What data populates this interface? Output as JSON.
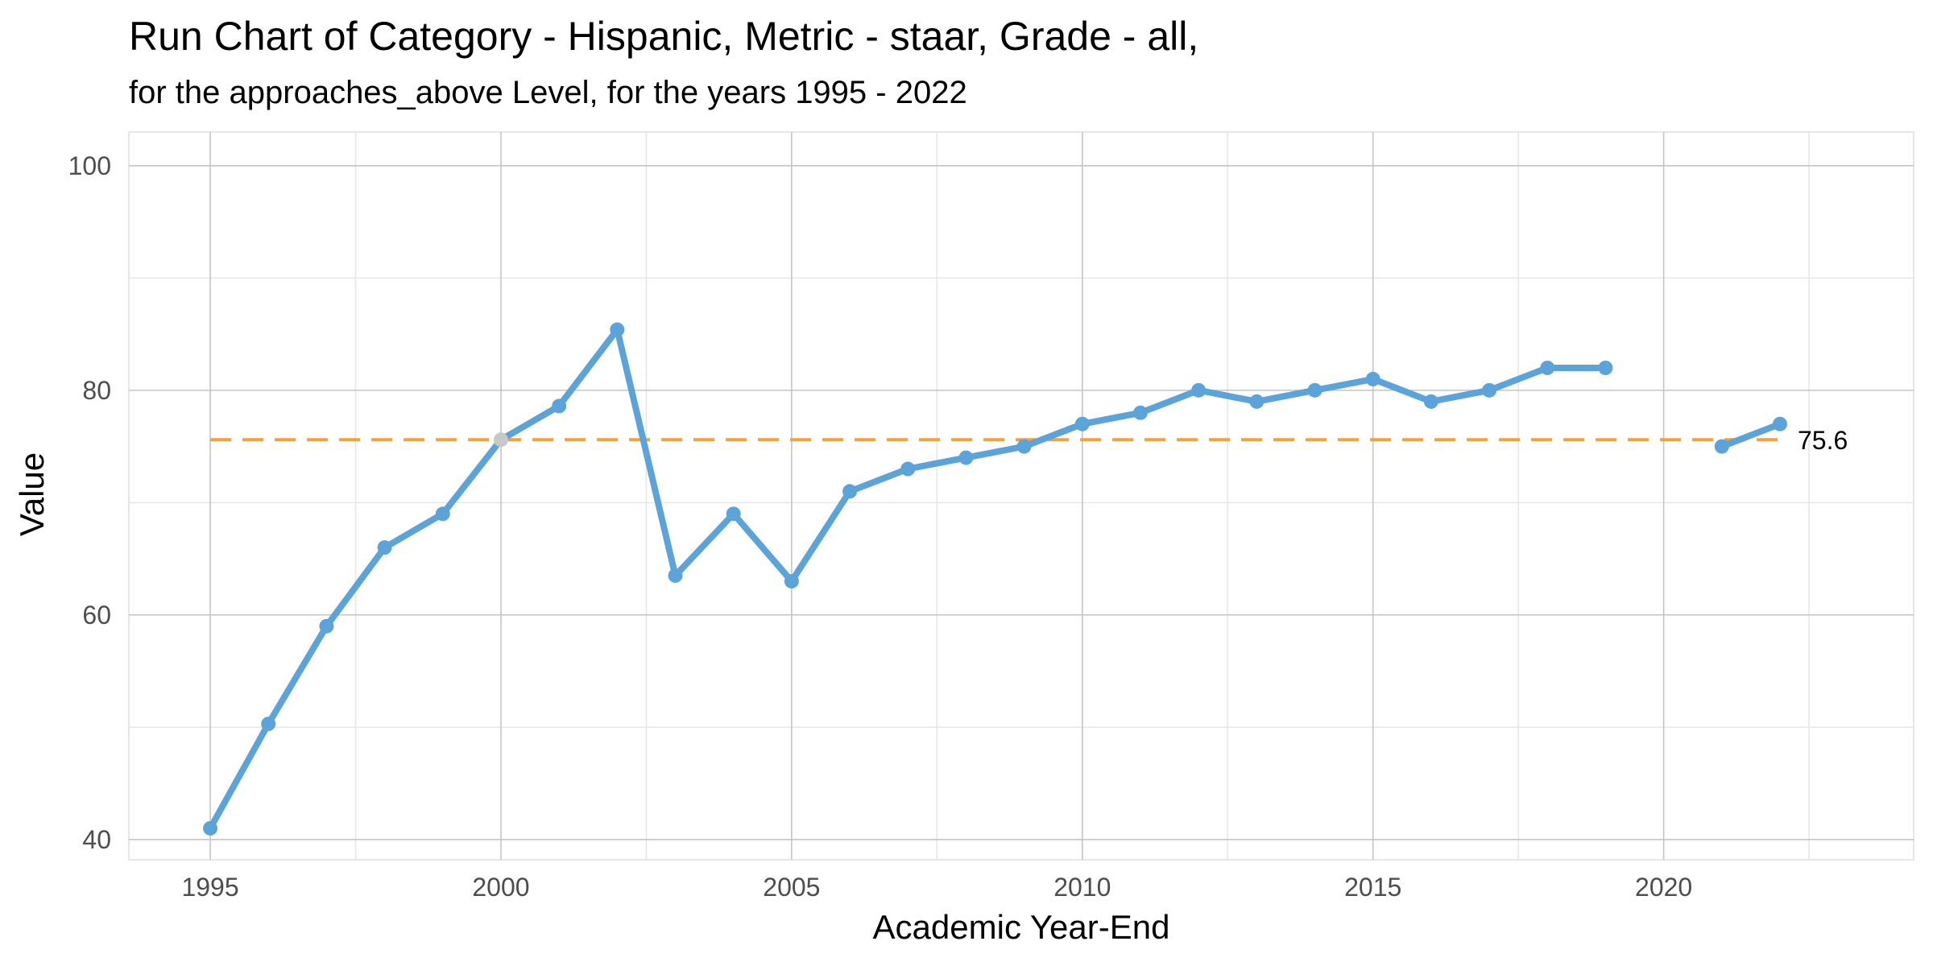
{
  "chart_data": {
    "type": "line",
    "title": "Run Chart of Category - Hispanic, Metric - staar, Grade - all,",
    "subtitle": "for the approaches_above Level, for the years 1995 - 2022",
    "xlabel": "Academic Year-End",
    "ylabel": "Value",
    "xlim": [
      1993.6,
      2024.3
    ],
    "ylim": [
      38.2,
      103
    ],
    "x_ticks": [
      1995,
      2000,
      2005,
      2010,
      2015,
      2020
    ],
    "y_ticks": [
      40,
      60,
      80,
      100
    ],
    "grid": true,
    "series": [
      {
        "color": "#5BA3D9",
        "points": [
          {
            "x": 1995,
            "y": 41
          },
          {
            "x": 1996,
            "y": 50.3
          },
          {
            "x": 1997,
            "y": 59
          },
          {
            "x": 1998,
            "y": 66
          },
          {
            "x": 1999,
            "y": 69
          },
          {
            "x": 2000,
            "y": 75.6,
            "highlight": true
          },
          {
            "x": 2001,
            "y": 78.6
          },
          {
            "x": 2002,
            "y": 85.4
          },
          {
            "x": 2003,
            "y": 63.5
          },
          {
            "x": 2004,
            "y": 69
          },
          {
            "x": 2005,
            "y": 63
          },
          {
            "x": 2006,
            "y": 71
          },
          {
            "x": 2007,
            "y": 73
          },
          {
            "x": 2008,
            "y": 74
          },
          {
            "x": 2009,
            "y": 75
          },
          {
            "x": 2010,
            "y": 77
          },
          {
            "x": 2011,
            "y": 78
          },
          {
            "x": 2012,
            "y": 80
          },
          {
            "x": 2013,
            "y": 79
          },
          {
            "x": 2014,
            "y": 80
          },
          {
            "x": 2015,
            "y": 81
          },
          {
            "x": 2016,
            "y": 79
          },
          {
            "x": 2017,
            "y": 80
          },
          {
            "x": 2018,
            "y": 82
          },
          {
            "x": 2019,
            "y": 82
          },
          {
            "x": 2020,
            "y": null
          },
          {
            "x": 2021,
            "y": 75
          },
          {
            "x": 2022,
            "y": 77
          }
        ]
      }
    ],
    "reference_line": {
      "value": 75.6,
      "label": "75.6",
      "x_start": 1995,
      "x_end": 2022,
      "color": "#F5A13A",
      "style": "dashed"
    },
    "highlight_color": "#C8C8C8"
  }
}
